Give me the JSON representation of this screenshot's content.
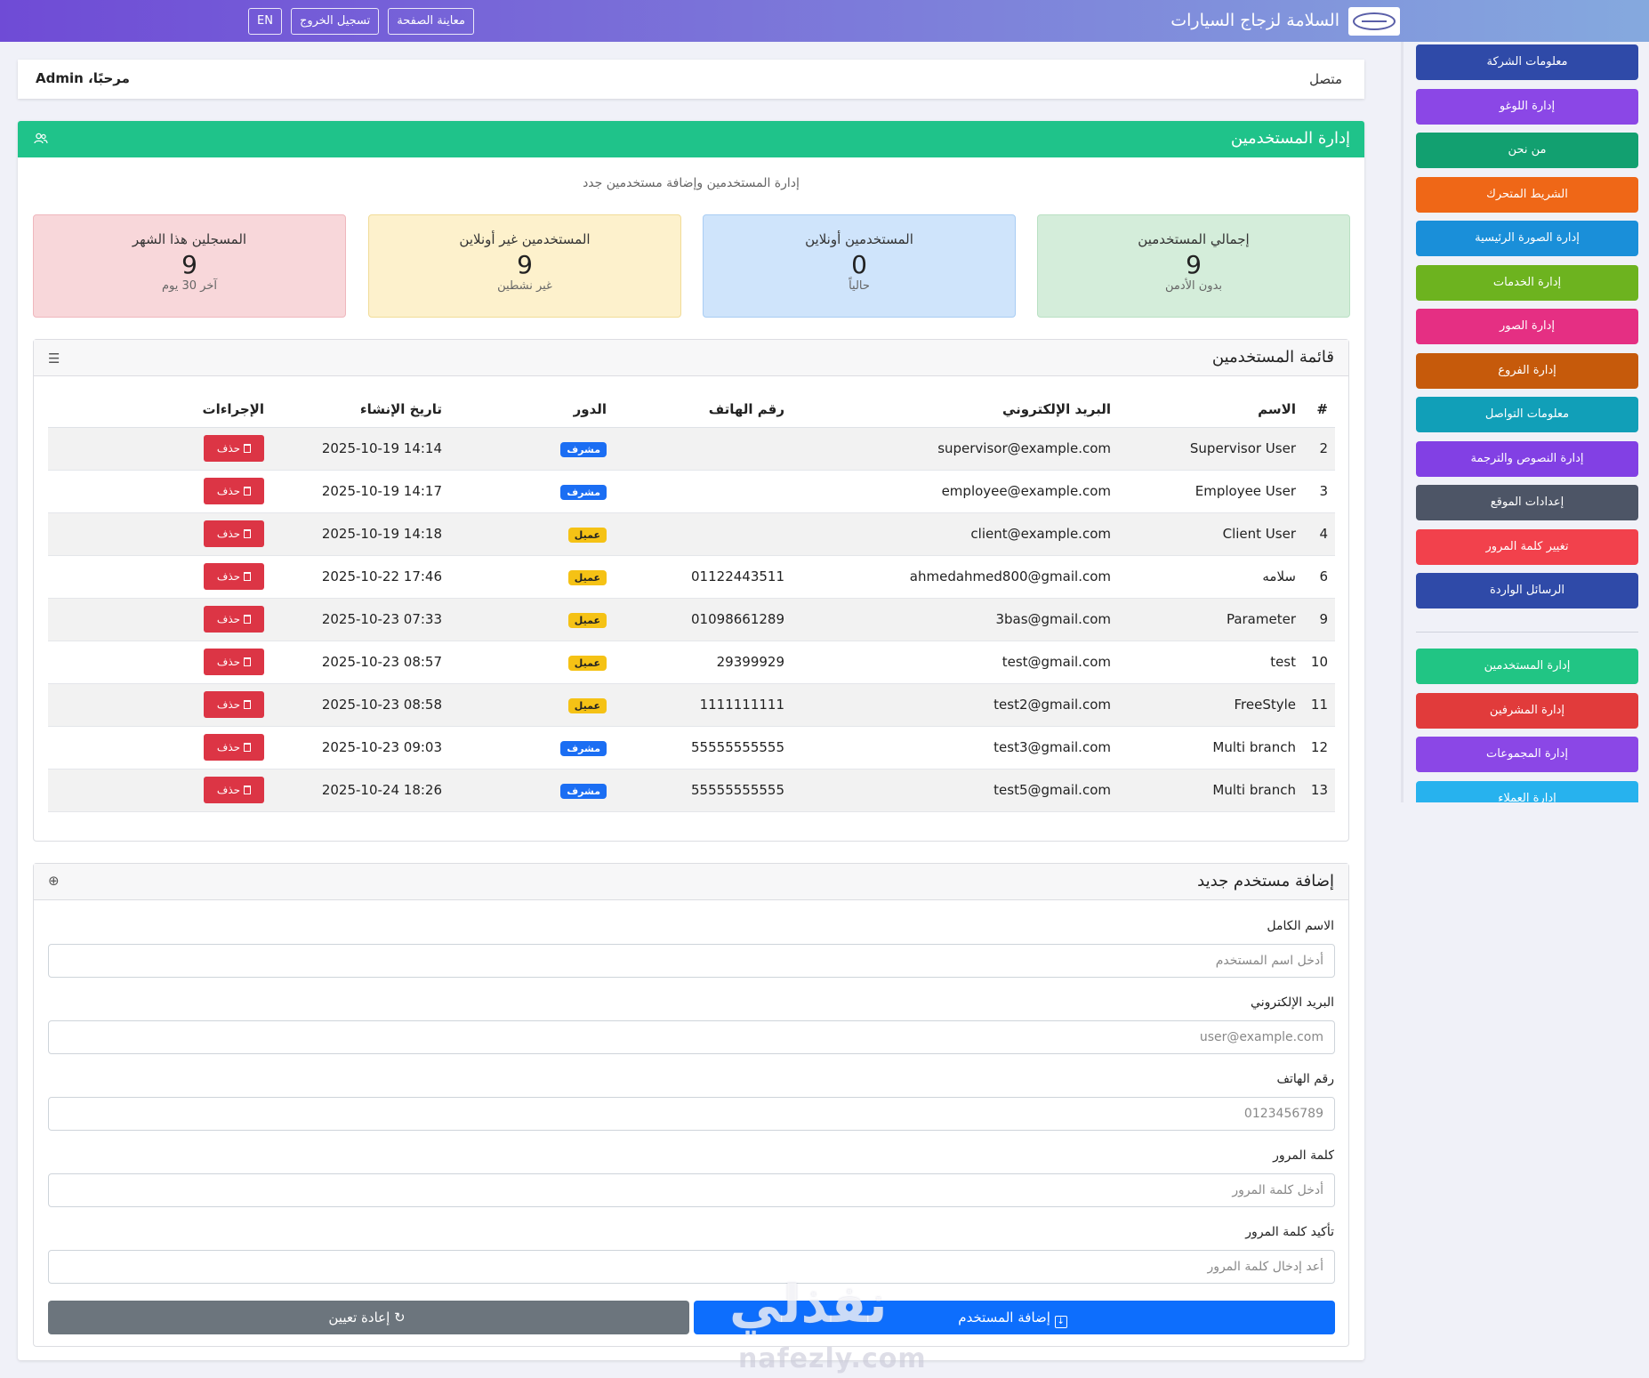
{
  "topbar": {
    "brand": "السلامة لزجاج السيارات",
    "buttons": [
      "معاينة الصفحة",
      "تسجيل الخروج",
      "EN"
    ]
  },
  "sidebar": {
    "items": [
      {
        "label": "معلومات الشركة",
        "color": "#2f4aa8"
      },
      {
        "label": "إدارة اللوغو",
        "color": "#8b47e6"
      },
      {
        "label": "من نحن",
        "color": "#12a070"
      },
      {
        "label": "الشريط المتحرك",
        "color": "#ef6717"
      },
      {
        "label": "إدارة الصورة الرئيسية",
        "color": "#1a8fd9"
      },
      {
        "label": "إدارة الخدمات",
        "color": "#6db31f"
      },
      {
        "label": "إدارة الصور",
        "color": "#e52f83"
      },
      {
        "label": "إدارة الفروع",
        "color": "#c65a0b"
      },
      {
        "label": "معلومات التواصل",
        "color": "#119fb8"
      },
      {
        "label": "إدارة النصوص والترجمة",
        "color": "#8240e4"
      },
      {
        "label": "إعدادات الموقع",
        "color": "#4d5566"
      },
      {
        "label": "تغيير كلمة المرور",
        "color": "#f2414c"
      },
      {
        "label": "الرسائل الواردة",
        "color": "#2f4aa8"
      }
    ],
    "items2": [
      {
        "label": "إدارة المستخدمين",
        "color": "#21c584"
      },
      {
        "label": "إدارة المشرفين",
        "color": "#e13b3b"
      },
      {
        "label": "إدارة المجموعات",
        "color": "#8b47e6"
      },
      {
        "label": "إدارة العملاء",
        "color": "#27b2ee"
      }
    ]
  },
  "welcome": {
    "status": "متصل",
    "greeting": "مرحبًا، Admin"
  },
  "main": {
    "title": "إدارة المستخدمين",
    "subtitle": "إدارة المستخدمين وإضافة مستخدمين جدد",
    "stats": [
      {
        "label": "إجمالي المستخدمين",
        "value": "9",
        "sub": "بدون الأدمن",
        "bg": "#d4edda",
        "border": "#b9e0c3"
      },
      {
        "label": "المستخدمين أونلاين",
        "value": "0",
        "sub": "حالياً",
        "bg": "#cfe4fb",
        "border": "#a9cdf3"
      },
      {
        "label": "المستخدمين غير أونلاين",
        "value": "9",
        "sub": "غير نشطين",
        "bg": "#fdf1cc",
        "border": "#f1dc98"
      },
      {
        "label": "المسجلين هذا الشهر",
        "value": "9",
        "sub": "آخر 30 يوم",
        "bg": "#f8d7da",
        "border": "#efb7bd"
      }
    ]
  },
  "users_table": {
    "title": "قائمة المستخدمين",
    "columns": [
      "#",
      "الاسم",
      "البريد الإلكتروني",
      "رقم الهاتف",
      "الدور",
      "تاريخ الإنشاء",
      "الإجراءات"
    ],
    "delete_label": "حذف",
    "rows": [
      {
        "id": "2",
        "name": "Supervisor User",
        "email": "supervisor@example.com",
        "phone": "",
        "role": "مشرف",
        "role_type": "sup",
        "created": "2025-10-19 14:14"
      },
      {
        "id": "3",
        "name": "Employee User",
        "email": "employee@example.com",
        "phone": "",
        "role": "مشرف",
        "role_type": "sup",
        "created": "2025-10-19 14:17"
      },
      {
        "id": "4",
        "name": "Client User",
        "email": "client@example.com",
        "phone": "",
        "role": "عميل",
        "role_type": "cli",
        "created": "2025-10-19 14:18"
      },
      {
        "id": "6",
        "name": "سلامه",
        "email": "ahmedahmed800@gmail.com",
        "phone": "01122443511",
        "role": "عميل",
        "role_type": "cli",
        "created": "2025-10-22 17:46"
      },
      {
        "id": "9",
        "name": "Parameter",
        "email": "3bas@gmail.com",
        "phone": "01098661289",
        "role": "عميل",
        "role_type": "cli",
        "created": "2025-10-23 07:33"
      },
      {
        "id": "10",
        "name": "test",
        "email": "test@gmail.com",
        "phone": "29399929",
        "role": "عميل",
        "role_type": "cli",
        "created": "2025-10-23 08:57"
      },
      {
        "id": "11",
        "name": "FreeStyle",
        "email": "test2@gmail.com",
        "phone": "1111111111",
        "role": "عميل",
        "role_type": "cli",
        "created": "2025-10-23 08:58"
      },
      {
        "id": "12",
        "name": "Multi branch",
        "email": "test3@gmail.com",
        "phone": "55555555555",
        "role": "مشرف",
        "role_type": "sup",
        "created": "2025-10-23 09:03"
      },
      {
        "id": "13",
        "name": "Multi branch",
        "email": "test5@gmail.com",
        "phone": "55555555555",
        "role": "مشرف",
        "role_type": "sup",
        "created": "2025-10-24 18:26"
      }
    ]
  },
  "add_form": {
    "title": "إضافة مستخدم جديد",
    "fields": [
      {
        "label": "الاسم الكامل",
        "placeholder": "أدخل اسم المستخدم"
      },
      {
        "label": "البريد الإلكتروني",
        "placeholder": "user@example.com"
      },
      {
        "label": "رقم الهاتف",
        "placeholder": "0123456789"
      },
      {
        "label": "كلمة المرور",
        "placeholder": "أدخل كلمة المرور"
      },
      {
        "label": "تأكيد كلمة المرور",
        "placeholder": "أعد إدخال كلمة المرور"
      }
    ],
    "submit_label": "إضافة المستخدم",
    "reset_label": "إعادة تعيين"
  },
  "watermark": {
    "text": "نفذلي",
    "url": "nafezly.com"
  }
}
